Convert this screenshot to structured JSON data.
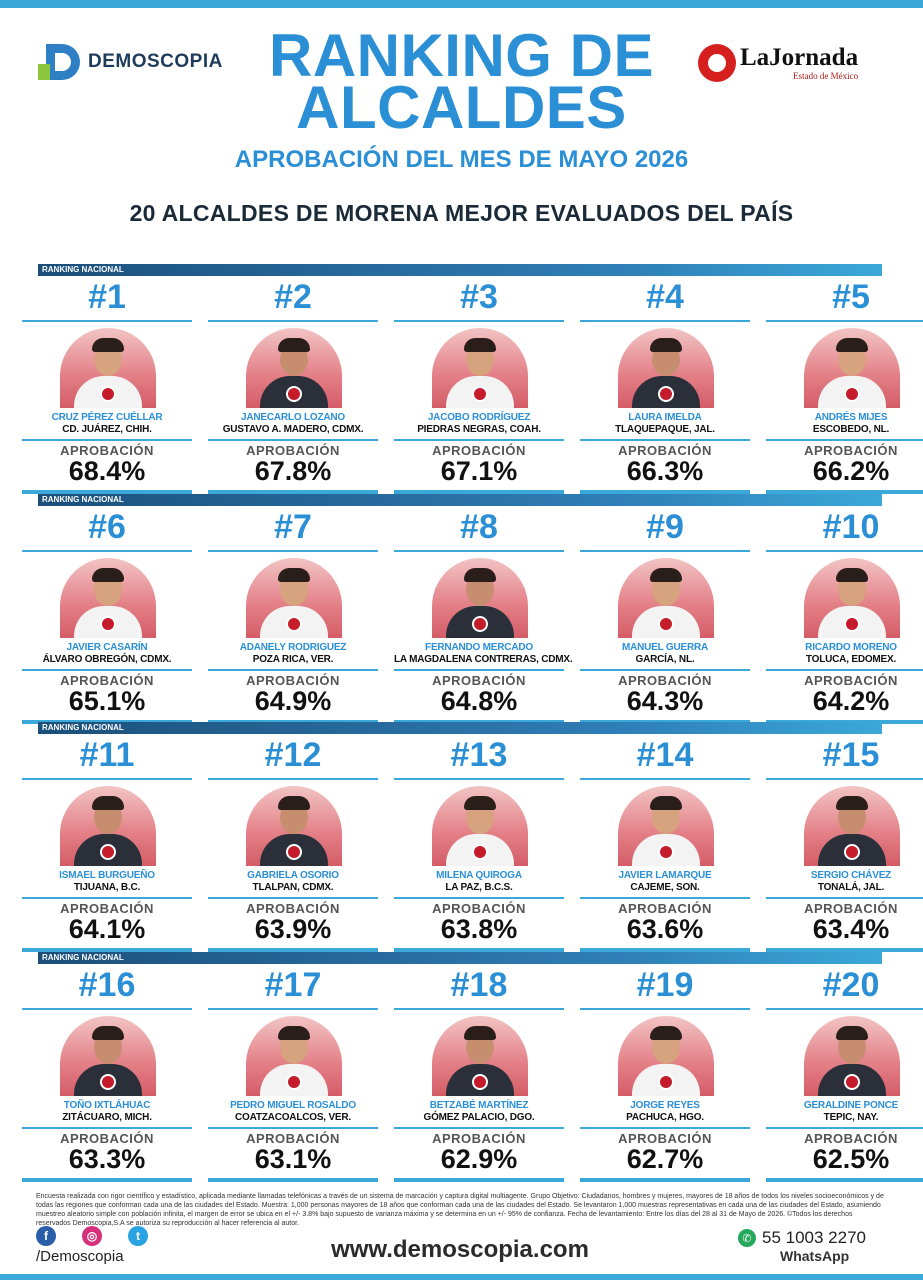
{
  "header": {
    "brand": "DEMOSCOPIA",
    "title": "RANKING DE ALCALDES",
    "subtitle": "APROBACIÓN DEL MES DE MAYO 2026",
    "headline": "20 ALCALDES DE MORENA MEJOR EVALUADOS DEL PAÍS",
    "partner": {
      "name": "LaJornada",
      "sub": "Estado de México"
    }
  },
  "section_label": "RANKING NACIONAL",
  "approval_label": "APROBACIÓN",
  "colors": {
    "accent": "#2b8fd6",
    "bar": "#3aa8d8",
    "badge": "#c41c2a"
  },
  "mayors": [
    {
      "rank": "#1",
      "name": "CRUZ PÉREZ CUÉLLAR",
      "place": "CD. JUÁREZ, CHIH.",
      "approval": "68.4%"
    },
    {
      "rank": "#2",
      "name": "JANECARLO LOZANO",
      "place": "GUSTAVO A. MADERO, CDMX.",
      "approval": "67.8%"
    },
    {
      "rank": "#3",
      "name": "JACOBO RODRÍGUEZ",
      "place": "PIEDRAS NEGRAS, COAH.",
      "approval": "67.1%"
    },
    {
      "rank": "#4",
      "name": "LAURA IMELDA",
      "place": "TLAQUEPAQUE, JAL.",
      "approval": "66.3%"
    },
    {
      "rank": "#5",
      "name": "ANDRÉS MIJES",
      "place": "ESCOBEDO, NL.",
      "approval": "66.2%"
    },
    {
      "rank": "#6",
      "name": "JAVIER CASARÍN",
      "place": "ÁLVARO OBREGÓN, CDMX.",
      "approval": "65.1%"
    },
    {
      "rank": "#7",
      "name": "ADANELY RODRIGUEZ",
      "place": "POZA RICA, VER.",
      "approval": "64.9%"
    },
    {
      "rank": "#8",
      "name": "FERNANDO MERCADO",
      "place": "LA MAGDALENA CONTRERAS, CDMX.",
      "approval": "64.8%"
    },
    {
      "rank": "#9",
      "name": "MANUEL GUERRA",
      "place": "GARCÍA, NL.",
      "approval": "64.3%"
    },
    {
      "rank": "#10",
      "name": "RICARDO MORENO",
      "place": "TOLUCA, EDOMEX.",
      "approval": "64.2%"
    },
    {
      "rank": "#11",
      "name": "ISMAEL BURGUEÑO",
      "place": "TIJUANA, B.C.",
      "approval": "64.1%"
    },
    {
      "rank": "#12",
      "name": "GABRIELA OSORIO",
      "place": "TLALPAN, CDMX.",
      "approval": "63.9%"
    },
    {
      "rank": "#13",
      "name": "MILENA QUIROGA",
      "place": "LA PAZ, B.C.S.",
      "approval": "63.8%"
    },
    {
      "rank": "#14",
      "name": "JAVIER LAMARQUE",
      "place": "CAJEME, SON.",
      "approval": "63.6%"
    },
    {
      "rank": "#15",
      "name": "SERGIO CHÁVEZ",
      "place": "TONALÁ, JAL.",
      "approval": "63.4%"
    },
    {
      "rank": "#16",
      "name": "TOÑO IXTLÁHUAC",
      "place": "ZITÁCUARO, MICH.",
      "approval": "63.3%"
    },
    {
      "rank": "#17",
      "name": "PEDRO MIGUEL ROSALDO",
      "place": "COATZACOALCOS, VER.",
      "approval": "63.1%"
    },
    {
      "rank": "#18",
      "name": "BETZABÉ MARTÍNEZ",
      "place": "GÓMEZ PALACIO, DGO.",
      "approval": "62.9%"
    },
    {
      "rank": "#19",
      "name": "JORGE REYES",
      "place": "PACHUCA, HGO.",
      "approval": "62.7%"
    },
    {
      "rank": "#20",
      "name": "GERALDINE PONCE",
      "place": "TEPIC, NAY.",
      "approval": "62.5%"
    }
  ],
  "footer": {
    "disclaimer": "Encuesta realizada con rigor científico y estadístico, aplicada mediante llamadas telefónicas a través de un sistema de marcación y captura digital multiagente. Grupo Objetivo: Ciudadanos, hombres y mujeres, mayores de 18 años de todos los niveles socioeconómicos y de todas las regiones que conforman cada una de las ciudades del Estado. Muestra: 1,000 personas mayores de 18 años que conforman cada una de las ciudades del Estado. Se levantaron 1,000 muestras representativas en cada una de las ciudades del Estado, asumiendo muestreo aleatorio simple con población infinita, el margen de error se ubica en el +/- 3.8% bajo supuesto de varianza máxima y se determina en un +/- 95% de confianza. Fecha de levantamiento: Entre los días del 28 al 31 de Mayo de 2026. ©Todos los derechos reservados Demoscopia,S.A se autoriza su reproducción al hacer referencia al autor.",
    "handle": "/Demoscopia",
    "website": "www.demoscopia.com",
    "phone": "55 1003 2270",
    "whatsapp": "WhatsApp",
    "social": [
      "facebook-icon",
      "instagram-icon",
      "twitter-icon"
    ]
  }
}
